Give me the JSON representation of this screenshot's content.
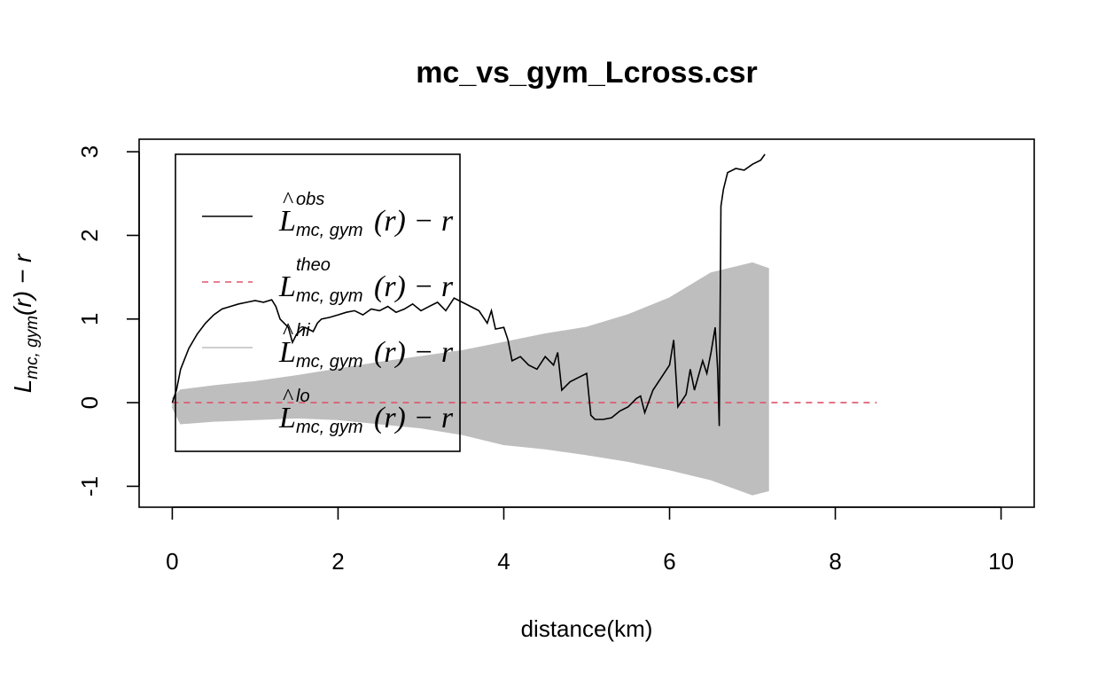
{
  "chart_data": {
    "type": "line",
    "title": "mc_vs_gym_Lcross.csr",
    "xlabel": "distance(km)",
    "ylabel": {
      "main": "L",
      "sub": "mc, gym",
      "tail": "(r) − r"
    },
    "xlim": [
      -0.4,
      10.4
    ],
    "ylim": [
      -1.25,
      3.15
    ],
    "x_ticks": [
      0,
      2,
      4,
      6,
      8,
      10
    ],
    "y_ticks": [
      -1,
      0,
      1,
      2,
      3
    ],
    "x_tick_labels": [
      "0",
      "2",
      "4",
      "6",
      "8",
      "10"
    ],
    "y_tick_labels": [
      "-1",
      "0",
      "1",
      "2",
      "3"
    ],
    "grid": false,
    "legend_position": "top-left",
    "colors": {
      "obs": "#000000",
      "theo": "#DF536B",
      "envelope": "#BEBEBE"
    },
    "legend": [
      {
        "key": "obs",
        "sup": "obs",
        "sub": "mc, gym",
        "tail": "(r) − r",
        "style": "solid"
      },
      {
        "key": "theo",
        "sup": "theo",
        "sub": "mc, gym",
        "tail": "(r) − r",
        "style": "dashed"
      },
      {
        "key": "hi",
        "sup": "hi",
        "sub": "mc, gym",
        "tail": "(r) − r",
        "style": "solid"
      },
      {
        "key": "lo",
        "sup": "lo",
        "sub": "mc, gym",
        "tail": "(r) − r",
        "style": "solid"
      }
    ],
    "series": [
      {
        "key": "obs",
        "x": [
          0,
          0.05,
          0.1,
          0.2,
          0.3,
          0.4,
          0.5,
          0.6,
          0.7,
          0.8,
          0.9,
          1.0,
          1.1,
          1.2,
          1.25,
          1.3,
          1.4,
          1.45,
          1.5,
          1.6,
          1.7,
          1.75,
          1.8,
          1.9,
          2.0,
          2.1,
          2.2,
          2.3,
          2.4,
          2.5,
          2.6,
          2.7,
          2.8,
          2.9,
          3.0,
          3.1,
          3.2,
          3.3,
          3.4,
          3.5,
          3.6,
          3.7,
          3.8,
          3.85,
          3.9,
          4.0,
          4.05,
          4.1,
          4.2,
          4.3,
          4.4,
          4.5,
          4.6,
          4.65,
          4.7,
          4.8,
          4.9,
          5.0,
          5.05,
          5.1,
          5.2,
          5.3,
          5.4,
          5.5,
          5.6,
          5.65,
          5.7,
          5.8,
          5.9,
          6.0,
          6.05,
          6.1,
          6.2,
          6.25,
          6.3,
          6.4,
          6.45,
          6.5,
          6.55,
          6.58,
          6.6,
          6.62,
          6.65,
          6.7,
          6.8,
          6.9,
          7.0,
          7.1,
          7.15
        ],
        "y": [
          0,
          0.15,
          0.4,
          0.65,
          0.82,
          0.95,
          1.05,
          1.12,
          1.15,
          1.18,
          1.2,
          1.22,
          1.2,
          1.23,
          1.15,
          1.0,
          0.9,
          0.72,
          0.82,
          0.9,
          0.85,
          0.95,
          1.0,
          1.02,
          1.05,
          1.08,
          1.1,
          1.05,
          1.12,
          1.1,
          1.15,
          1.08,
          1.12,
          1.18,
          1.1,
          1.15,
          1.2,
          1.1,
          1.25,
          1.2,
          1.15,
          1.1,
          0.95,
          1.1,
          0.88,
          0.9,
          0.75,
          0.5,
          0.55,
          0.45,
          0.4,
          0.55,
          0.45,
          0.6,
          0.15,
          0.25,
          0.3,
          0.35,
          -0.15,
          -0.2,
          -0.2,
          -0.18,
          -0.1,
          -0.05,
          0.05,
          0.08,
          -0.12,
          0.15,
          0.3,
          0.45,
          0.75,
          -0.05,
          0.1,
          0.4,
          0.15,
          0.5,
          0.35,
          0.6,
          0.9,
          0.4,
          -0.28,
          2.35,
          2.55,
          2.75,
          2.8,
          2.78,
          2.85,
          2.9,
          2.97
        ]
      },
      {
        "key": "theo",
        "x": [
          0,
          8.5
        ],
        "y": [
          0,
          0
        ]
      },
      {
        "key": "hi",
        "x": [
          0,
          0.1,
          0.5,
          1.0,
          1.5,
          2.0,
          2.5,
          3.0,
          3.5,
          4.0,
          4.5,
          5.0,
          5.5,
          6.0,
          6.5,
          7.0,
          7.2
        ],
        "y": [
          0.05,
          0.15,
          0.2,
          0.25,
          0.32,
          0.4,
          0.48,
          0.55,
          0.62,
          0.72,
          0.82,
          0.9,
          1.05,
          1.25,
          1.55,
          1.67,
          1.6
        ]
      },
      {
        "key": "lo",
        "x": [
          0,
          0.1,
          0.5,
          1.0,
          1.5,
          2.0,
          2.5,
          3.0,
          3.5,
          4.0,
          4.5,
          5.0,
          5.5,
          6.0,
          6.5,
          7.0,
          7.2
        ],
        "y": [
          -0.05,
          -0.25,
          -0.22,
          -0.2,
          -0.18,
          -0.2,
          -0.25,
          -0.3,
          -0.38,
          -0.5,
          -0.55,
          -0.62,
          -0.7,
          -0.8,
          -0.92,
          -1.1,
          -1.05
        ]
      }
    ]
  }
}
